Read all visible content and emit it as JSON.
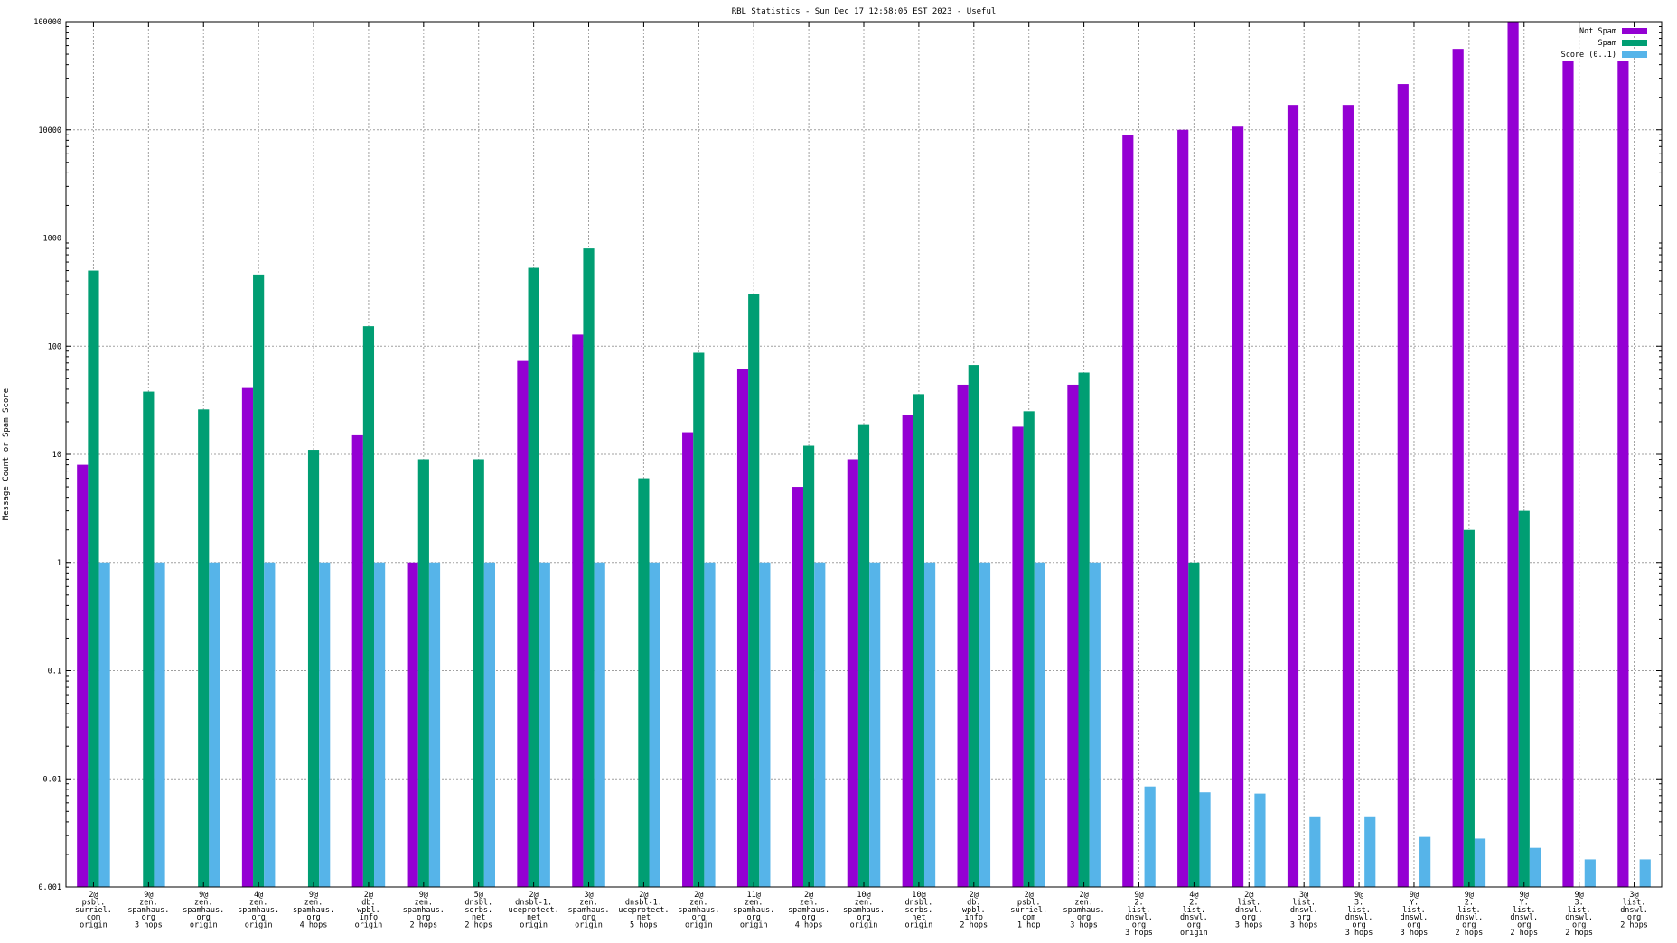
{
  "chart_data": {
    "type": "bar",
    "title": "RBL Statistics - Sun Dec 17 12:58:05 EST 2023 - Useful",
    "xlabel": "",
    "ylabel": "Message Count or Spam Score",
    "yscale": "log",
    "ylim": [
      0.001,
      100000
    ],
    "yticks": [
      "0.001",
      "0.01",
      "0.1",
      "1",
      "10",
      "100",
      "1000",
      "10000",
      "100000"
    ],
    "grid": true,
    "legend_position": "top-right",
    "categories": [
      [
        "2@",
        "psbl.",
        "surriel.",
        "com",
        "origin"
      ],
      [
        "9@",
        "zen.",
        "spamhaus.",
        "org",
        "3 hops"
      ],
      [
        "9@",
        "zen.",
        "spamhaus.",
        "org",
        "origin"
      ],
      [
        "4@",
        "zen.",
        "spamhaus.",
        "org",
        "origin"
      ],
      [
        "9@",
        "zen.",
        "spamhaus.",
        "org",
        "4 hops"
      ],
      [
        "2@",
        "db.",
        "wpbl.",
        "info",
        "origin"
      ],
      [
        "9@",
        "zen.",
        "spamhaus.",
        "org",
        "2 hops"
      ],
      [
        "5@",
        "dnsbl.",
        "sorbs.",
        "net",
        "2 hops"
      ],
      [
        "2@",
        "dnsbl-1.",
        "uceprotect.",
        "net",
        "origin"
      ],
      [
        "3@",
        "zen.",
        "spamhaus.",
        "org",
        "origin"
      ],
      [
        "2@",
        "dnsbl-1.",
        "uceprotect.",
        "net",
        "5 hops"
      ],
      [
        "2@",
        "zen.",
        "spamhaus.",
        "org",
        "origin"
      ],
      [
        "11@",
        "zen.",
        "spamhaus.",
        "org",
        "origin"
      ],
      [
        "2@",
        "zen.",
        "spamhaus.",
        "org",
        "4 hops"
      ],
      [
        "10@",
        "zen.",
        "spamhaus.",
        "org",
        "origin"
      ],
      [
        "10@",
        "dnsbl.",
        "sorbs.",
        "net",
        "origin"
      ],
      [
        "2@",
        "db.",
        "wpbl.",
        "info",
        "2 hops"
      ],
      [
        "2@",
        "psbl.",
        "surriel.",
        "com",
        "1 hop"
      ],
      [
        "2@",
        "zen.",
        "spamhaus.",
        "org",
        "3 hops"
      ],
      [
        "9@",
        "2.",
        "list.",
        "dnswl.",
        "org",
        "3 hops"
      ],
      [
        "4@",
        "2.",
        "list.",
        "dnswl.",
        "org",
        "origin"
      ],
      [
        "2@",
        "list.",
        "dnswl.",
        "org",
        "3 hops"
      ],
      [
        "3@",
        "list.",
        "dnswl.",
        "org",
        "3 hops"
      ],
      [
        "9@",
        "3.",
        "list.",
        "dnswl.",
        "org",
        "3 hops"
      ],
      [
        "9@",
        "Y.",
        "list.",
        "dnswl.",
        "org",
        "3 hops"
      ],
      [
        "9@",
        "2.",
        "list.",
        "dnswl.",
        "org",
        "2 hops"
      ],
      [
        "9@",
        "Y.",
        "list.",
        "dnswl.",
        "org",
        "2 hops"
      ],
      [
        "9@",
        "3.",
        "list.",
        "dnswl.",
        "org",
        "2 hops"
      ],
      [
        "3@",
        "list.",
        "dnswl.",
        "org",
        "2 hops"
      ]
    ],
    "series": [
      {
        "name": "Not Spam",
        "color": "#9400d3",
        "values": [
          8,
          null,
          null,
          41,
          null,
          15,
          1,
          null,
          73,
          128,
          null,
          16,
          61,
          5,
          9,
          23,
          44,
          18,
          44,
          9000,
          10000,
          10700,
          17000,
          17000,
          26500,
          56000,
          100000,
          43000,
          43000
        ]
      },
      {
        "name": "Spam",
        "color": "#009e73",
        "values": [
          500,
          38,
          26,
          460,
          11,
          153,
          9,
          9,
          530,
          800,
          6,
          87,
          305,
          12,
          19,
          36,
          67,
          25,
          57,
          null,
          1,
          null,
          null,
          null,
          null,
          2,
          3,
          null,
          null
        ]
      },
      {
        "name": "Score (0..1)",
        "color": "#56b4e9",
        "values": [
          1,
          1,
          1,
          1,
          1,
          1,
          1,
          1,
          1,
          1,
          1,
          1,
          1,
          1,
          1,
          1,
          1,
          1,
          1,
          0.0085,
          0.0075,
          0.0073,
          0.0045,
          0.0045,
          0.0029,
          0.0028,
          0.0023,
          0.0018,
          0.0018
        ]
      }
    ]
  }
}
